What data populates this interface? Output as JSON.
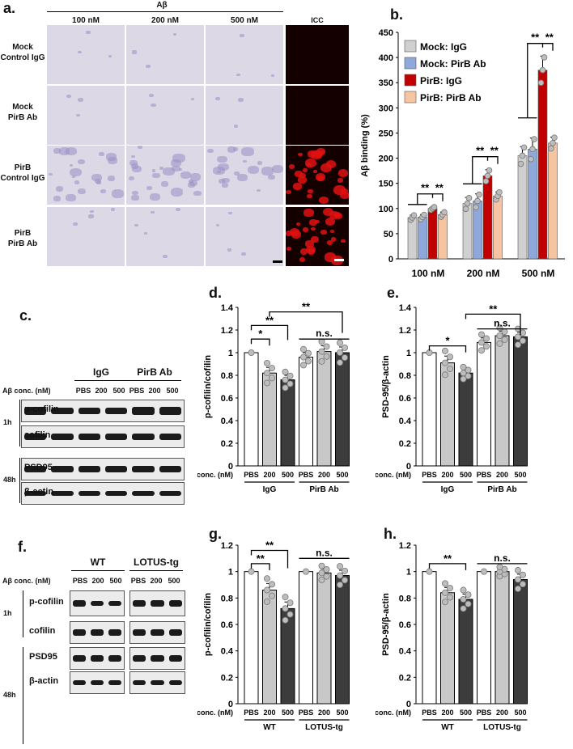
{
  "panel_a": {
    "label": "a.",
    "group_header": "Aβ",
    "columns": [
      "100 nM",
      "200 nM",
      "500 nM",
      "ICC"
    ],
    "rows": [
      [
        "Mock",
        "Control IgG"
      ],
      [
        "Mock",
        "PirB Ab"
      ],
      [
        "PirB",
        "Control IgG"
      ],
      [
        "PirB",
        "PirB Ab"
      ]
    ]
  },
  "panel_b": {
    "label": "b."
  },
  "panel_c": {
    "label": "c.",
    "groups": [
      "IgG",
      "PirB Ab"
    ],
    "conc_label": "Aβ conc. (nM)",
    "lanes": [
      "PBS",
      "200",
      "500",
      "PBS",
      "200",
      "500"
    ],
    "times": [
      "1h",
      "48h"
    ],
    "proteins": [
      "p-cofilin",
      "cofilin",
      "PSD95",
      "β-actin"
    ]
  },
  "panel_d": {
    "label": "d."
  },
  "panel_e": {
    "label": "e."
  },
  "panel_f": {
    "label": "f.",
    "groups": [
      "WT",
      "LOTUS-tg"
    ],
    "conc_label": "Aβ conc. (nM)",
    "lanes": [
      "PBS",
      "200",
      "500",
      "PBS",
      "200",
      "500"
    ],
    "times": [
      "1h",
      "48h"
    ],
    "proteins": [
      "p-cofilin",
      "cofilin",
      "PSD95",
      "β-actin"
    ]
  },
  "panel_g": {
    "label": "g."
  },
  "panel_h": {
    "label": "h."
  },
  "colors": {
    "white": "#ffffff",
    "lightgray": "#c8c8c8",
    "midgray": "#8c8c8c",
    "darkgray": "#3c3c3c",
    "mock_igg": "#d0d0d0",
    "mock_pirb": "#8fa8dc",
    "pirb_igg": "#c00000",
    "pirb_pirb": "#f6c4a0"
  },
  "chart_data": [
    {
      "id": "b",
      "type": "bar",
      "ylabel": "Aβ binding (%)",
      "ylim": [
        0,
        450
      ],
      "yticks": [
        0,
        50,
        100,
        150,
        200,
        250,
        300,
        350,
        400,
        450
      ],
      "categories": [
        "100 nM",
        "200 nM",
        "500 nM"
      ],
      "legend": "top-left",
      "series": [
        {
          "name": "Mock: IgG",
          "values": [
            82,
            110,
            205
          ],
          "errors": [
            5,
            12,
            18
          ]
        },
        {
          "name": "Mock: PirB Ab",
          "values": [
            83,
            115,
            218
          ],
          "errors": [
            5,
            14,
            22
          ]
        },
        {
          "name": "PirB: IgG",
          "values": [
            100,
            165,
            375
          ],
          "errors": [
            3,
            12,
            28
          ]
        },
        {
          "name": "PirB: PirB Ab",
          "values": [
            88,
            125,
            230
          ],
          "errors": [
            5,
            8,
            12
          ]
        }
      ],
      "significance": [
        "**",
        "**",
        "**",
        "**",
        "**",
        "**"
      ]
    },
    {
      "id": "d",
      "type": "bar",
      "ylabel": "p-cofilin/cofilin",
      "ylim": [
        0,
        1.4
      ],
      "yticks": [
        "0",
        "0.2",
        "0.4",
        "0.6",
        "0.8",
        "1",
        "1.2",
        "1.4"
      ],
      "xlabel": "Aβ conc. (nM)",
      "categories": [
        "PBS",
        "200",
        "500",
        "PBS",
        "200",
        "500"
      ],
      "groups": [
        "IgG",
        "PirB Ab"
      ],
      "values": [
        1.0,
        0.82,
        0.76,
        0.96,
        1.01,
        1.0
      ],
      "errors": [
        0,
        0.05,
        0.04,
        0.04,
        0.05,
        0.05
      ],
      "significance": [
        "*",
        "**",
        "**",
        "n.s."
      ]
    },
    {
      "id": "e",
      "type": "bar",
      "ylabel": "PSD-95/β-actin",
      "ylim": [
        0,
        1.4
      ],
      "yticks": [
        "0",
        "0.2",
        "0.4",
        "0.6",
        "0.8",
        "1",
        "1.2",
        "1.4"
      ],
      "xlabel": "Aβ conc. (nM)",
      "categories": [
        "PBS",
        "200",
        "500",
        "PBS",
        "200",
        "500"
      ],
      "groups": [
        "IgG",
        "PirB Ab"
      ],
      "values": [
        1.0,
        0.91,
        0.82,
        1.09,
        1.15,
        1.14
      ],
      "errors": [
        0,
        0.06,
        0.03,
        0.04,
        0.04,
        0.04
      ],
      "significance": [
        "*",
        "**",
        "n.s."
      ]
    },
    {
      "id": "g",
      "type": "bar",
      "ylabel": "p-cofilin/cofilin",
      "ylim": [
        0,
        1.2
      ],
      "yticks": [
        "0",
        "0.2",
        "0.4",
        "0.6",
        "0.8",
        "1",
        "1.2"
      ],
      "xlabel": "Aβ conc. (nM)",
      "categories": [
        "PBS",
        "200",
        "500",
        "PBS",
        "200",
        "500"
      ],
      "groups": [
        "WT",
        "LOTUS-tg"
      ],
      "values": [
        1.0,
        0.86,
        0.72,
        1.0,
        0.99,
        0.97
      ],
      "errors": [
        0,
        0.05,
        0.05,
        0,
        0.03,
        0.04
      ],
      "significance": [
        "**",
        "**",
        "n.s."
      ]
    },
    {
      "id": "h",
      "type": "bar",
      "ylabel": "PSD-95/β-actin",
      "ylim": [
        0,
        1.2
      ],
      "yticks": [
        "0",
        "0.2",
        "0.4",
        "0.6",
        "0.8",
        "1",
        "1.2"
      ],
      "xlabel": "Aβ conc. (nM)",
      "categories": [
        "PBS",
        "200",
        "500",
        "PBS",
        "200",
        "500"
      ],
      "groups": [
        "WT",
        "LOTUS-tg"
      ],
      "values": [
        1.0,
        0.84,
        0.79,
        1.0,
        1.0,
        0.94
      ],
      "errors": [
        0,
        0.04,
        0.04,
        0,
        0.02,
        0.04
      ],
      "significance": [
        "**",
        "n.s."
      ]
    }
  ]
}
